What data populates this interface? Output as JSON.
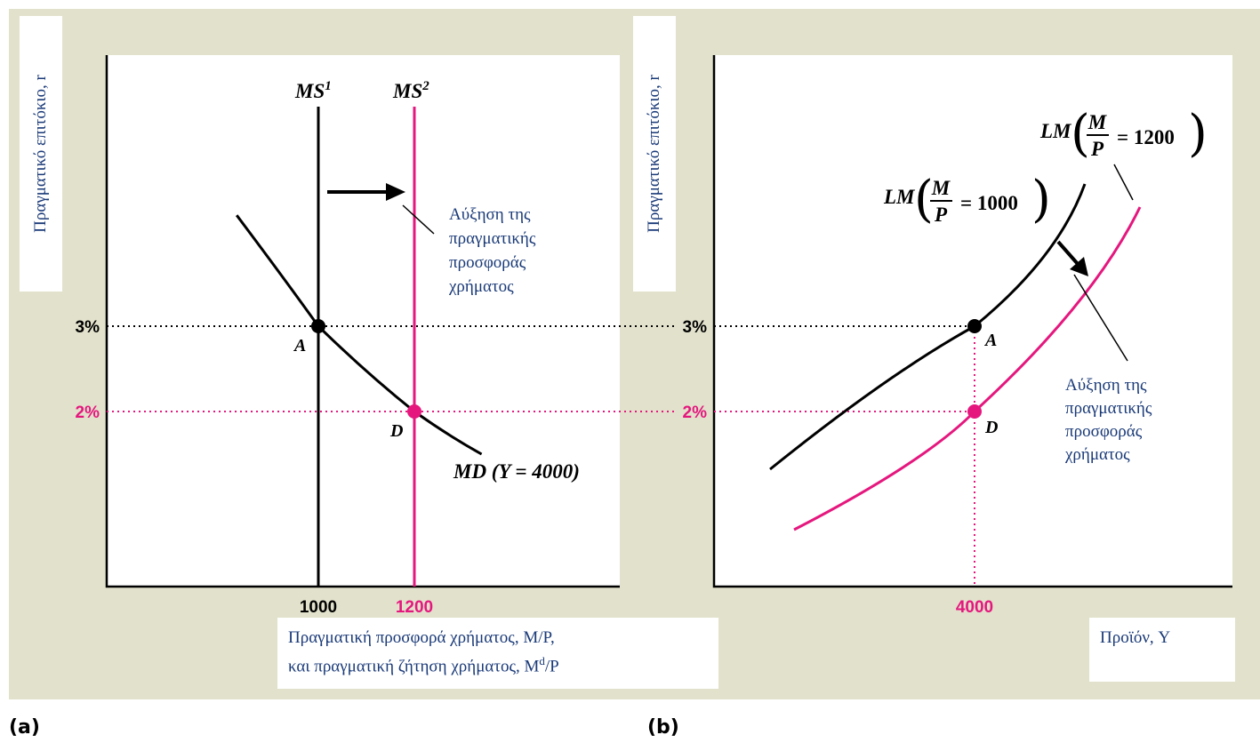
{
  "colors": {
    "background": "#e2e2cc",
    "black": "#000000",
    "magenta": "#e5177e",
    "label_blue": "#1a3a78"
  },
  "panel_tags": {
    "a": "(a)",
    "b": "(b)"
  },
  "axis_labels": {
    "y_left": "Πραγματικό επιτόκιο, r",
    "y_right": "Πραγματικό επιτόκιο, r",
    "x_left_line1": "Πραγματική προσφορά χρήματος, M/P,",
    "x_left_line2_pre": "και πραγματική ζήτηση χρήματος, M",
    "x_left_line2_sup": "d",
    "x_left_line2_post": "/P",
    "x_right": "Προϊόν, Y"
  },
  "annotations": {
    "left": [
      "Αύξηση της",
      "πραγματικής",
      "προσφοράς",
      "χρήματος"
    ],
    "right": [
      "Αύξηση της",
      "πραγματικής",
      "προσφοράς",
      "χρήματος"
    ]
  },
  "chart_data": [
    {
      "type": "line",
      "xlabel": "Πραγματική προσφορά χρήματος, M/P, και πραγματική ζήτηση χρήματος, Md/P",
      "ylabel": "Πραγματικό επιτόκιο, r",
      "x_ticks": [
        "1000",
        "1200"
      ],
      "y_ticks": [
        "3%",
        "2%"
      ],
      "series": [
        {
          "name": "MS1",
          "label": "MS",
          "sup": "1",
          "x": [
            1000,
            1000
          ],
          "y": [
            6.0,
            0.0
          ],
          "color": "#000000"
        },
        {
          "name": "MS2",
          "label": "MS",
          "sup": "2",
          "x": [
            1200,
            1200
          ],
          "y": [
            6.0,
            0.0
          ],
          "color": "#e5177e"
        },
        {
          "name": "MD (Y = 4000)",
          "label": "MD (Y = 4000)",
          "x": [
            830,
            1000,
            1200,
            1340
          ],
          "y": [
            4.3,
            3.0,
            2.0,
            1.5
          ],
          "color": "#000000"
        }
      ],
      "points": [
        {
          "label": "A",
          "x": 1000,
          "y": 3.0,
          "color": "#000000"
        },
        {
          "label": "D",
          "x": 1200,
          "y": 2.0,
          "color": "#e5177e"
        }
      ]
    },
    {
      "type": "line",
      "xlabel": "Προϊόν, Y",
      "ylabel": "Πραγματικό επιτόκιο, r",
      "x_ticks": [
        "4000"
      ],
      "y_ticks": [
        "3%",
        "2%"
      ],
      "series": [
        {
          "name": "LM (M/P = 1000)",
          "label": "LM",
          "mp": "1000",
          "color": "#000000"
        },
        {
          "name": "LM (M/P = 1200)",
          "label": "LM",
          "mp": "1200",
          "color": "#e5177e"
        }
      ],
      "points": [
        {
          "label": "A",
          "x": 4000,
          "y": 3.0,
          "color": "#000000"
        },
        {
          "label": "D",
          "x": 4000,
          "y": 2.0,
          "color": "#e5177e"
        }
      ]
    }
  ]
}
